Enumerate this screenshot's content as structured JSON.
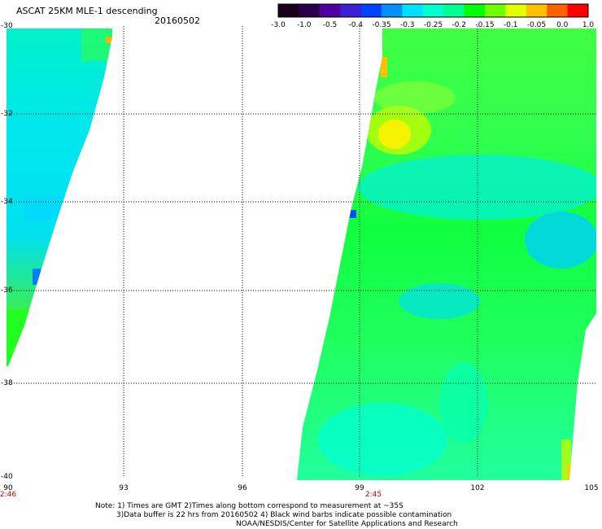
{
  "header": {
    "title": "ASCAT 25KM MLE-1 descending",
    "date": "20160502"
  },
  "colorbar": {
    "labels": [
      "-3.0",
      "-1.0",
      "-0.5",
      "-0.4",
      "-0.35",
      "-0.3",
      "-0.25",
      "-0.2",
      "-0.15",
      "-0.1",
      "-0.05",
      "0.0",
      "1.0"
    ],
    "colors": [
      "#1a001a",
      "#2a004a",
      "#5000a0",
      "#3a20d0",
      "#0040ff",
      "#0090ff",
      "#00e0ff",
      "#00ffd0",
      "#00ff90",
      "#00ff00",
      "#70ff00",
      "#e0ff00",
      "#ffc000",
      "#ff6000",
      "#ff0000"
    ]
  },
  "map": {
    "lat_labels": [
      "-30",
      "-32",
      "-34",
      "-36",
      "-38",
      "-40"
    ],
    "lon_labels": [
      "90",
      "93",
      "96",
      "99",
      "102",
      "105"
    ],
    "time_labels": [
      "2:46",
      "2:45"
    ]
  },
  "notes": {
    "line1": "Note: 1) Times are GMT 2)Times along bottom correspond to measurement at ~35S",
    "line2": "3)Data buffer is 22 hrs from 20160502 4) Black wind barbs indicate possible contamination",
    "line3": "NOAA/NESDIS/Center for Satellite Applications and Research"
  }
}
